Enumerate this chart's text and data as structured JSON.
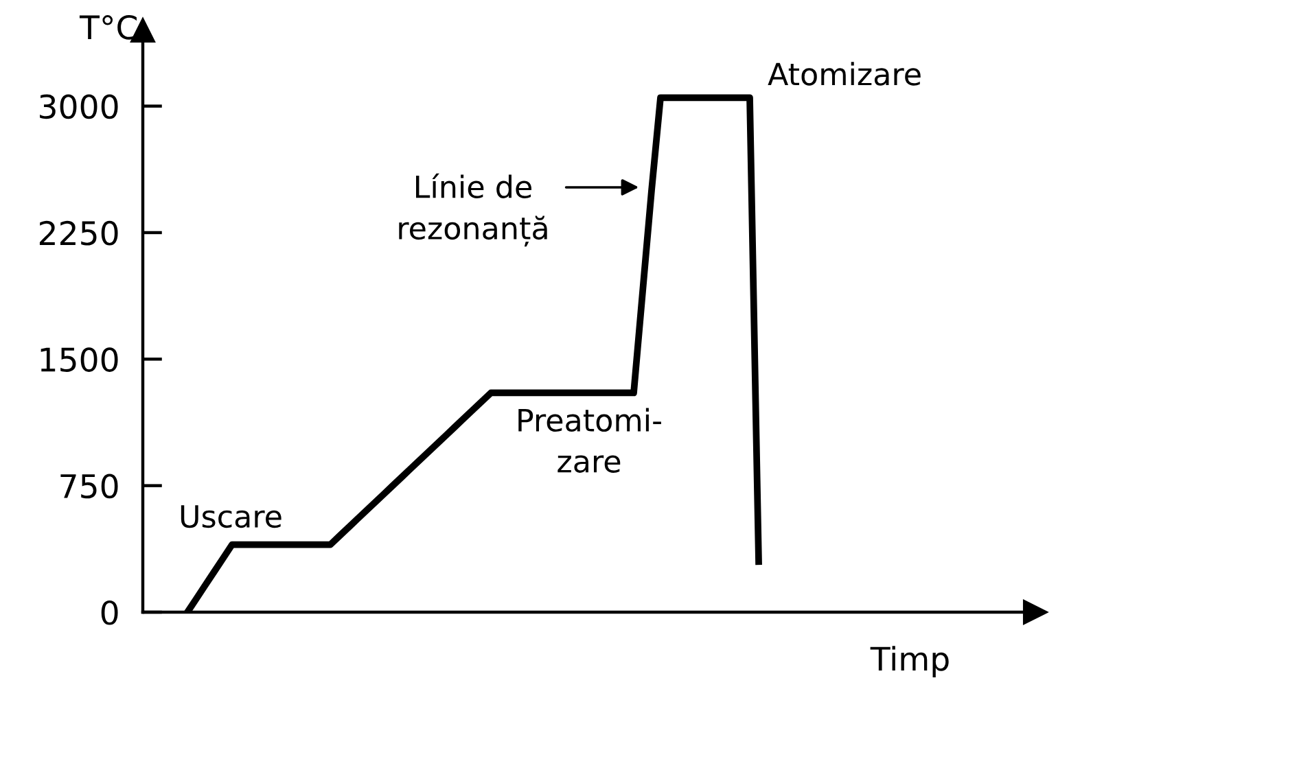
{
  "chart_data": {
    "type": "line",
    "ylabel": "T°C",
    "xlabel": "Timp",
    "categories": [
      null,
      null,
      null,
      null,
      null,
      null,
      null,
      null,
      null,
      null,
      null,
      null,
      null,
      null,
      null,
      null,
      null,
      null,
      null,
      null,
      null,
      null,
      null,
      null,
      null,
      null,
      null,
      null,
      null,
      null,
      null,
      null,
      null,
      null,
      null,
      null,
      null,
      null,
      null,
      null,
      null,
      null,
      null,
      null,
      null,
      null,
      null,
      null,
      null,
      null,
      null,
      null,
      null,
      null,
      null,
      null,
      null,
      null,
      null,
      null,
      null,
      null,
      null,
      null,
      null,
      null,
      null,
      null,
      null,
      null
    ],
    "ylim": [
      0,
      3450
    ],
    "yticks": [
      0,
      750,
      1500,
      2250,
      3000
    ],
    "tick_labels": "y",
    "grid": false,
    "legend": false,
    "series": [
      {
        "color": "#000000",
        "values": [
          null,
          null,
          null,
          null,
          null,
          0,
          80,
          160,
          240,
          320,
          400,
          400,
          400,
          400,
          400,
          400,
          400,
          400,
          400,
          400,
          400,
          400,
          450,
          500,
          550,
          600,
          650,
          700,
          750,
          800,
          850,
          900,
          950,
          1000,
          1050,
          1100,
          1150,
          1200,
          1250,
          1300,
          1300,
          1300,
          1300,
          1300,
          1300,
          1300,
          1300,
          1300,
          1300,
          1300,
          1300,
          1300,
          1300,
          1300,
          1300,
          1300,
          1900,
          2500,
          3050,
          3050,
          3050,
          3050,
          3050,
          3050,
          3050,
          3050,
          3050,
          3050,
          3050,
          300
        ]
      }
    ],
    "annotations": [
      "Uscare",
      "Preatomi-\nzare",
      "Atomizare",
      "Línie de\nrezonanță"
    ]
  }
}
